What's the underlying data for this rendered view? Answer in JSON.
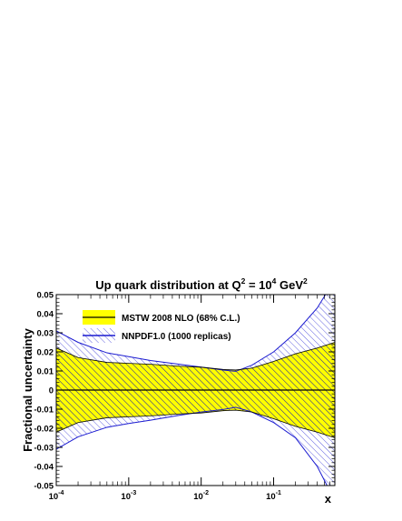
{
  "chart_data": {
    "type": "area",
    "title_main": "Up quark distribution at Q",
    "title_sup1": "2",
    "title_mid": " = 10",
    "title_sup2": "4",
    "title_unit": " GeV",
    "title_sup3": "2",
    "xlabel": "x",
    "ylabel": "Fractional uncertainty",
    "xscale": "log",
    "xlim": [
      0.0001,
      0.7
    ],
    "ylim": [
      -0.05,
      0.05
    ],
    "x_tick_labels": [
      {
        "base": "10",
        "exp": "-4",
        "value": 0.0001
      },
      {
        "base": "10",
        "exp": "-3",
        "value": 0.001
      },
      {
        "base": "10",
        "exp": "-2",
        "value": 0.01
      },
      {
        "base": "10",
        "exp": "-1",
        "value": 0.1
      }
    ],
    "y_ticks": [
      {
        "value": 0.05,
        "label": "0.05"
      },
      {
        "value": 0.04,
        "label": "0.04"
      },
      {
        "value": 0.03,
        "label": "0.03"
      },
      {
        "value": 0.02,
        "label": "0.02"
      },
      {
        "value": 0.01,
        "label": "0.01"
      },
      {
        "value": 0.0,
        "label": "0"
      },
      {
        "value": -0.01,
        "label": "-0.01"
      },
      {
        "value": -0.02,
        "label": "-0.02"
      },
      {
        "value": -0.03,
        "label": "-0.03"
      },
      {
        "value": -0.04,
        "label": "-0.04"
      },
      {
        "value": -0.05,
        "label": "-0.05"
      }
    ],
    "legend_placement": "top-left",
    "grid": false,
    "series": [
      {
        "name": "MSTW 2008 NLO (68% C.L.)",
        "style": "solid-band",
        "fill": "#ffff00",
        "hatch": "#000000",
        "edge": "#000000",
        "x": [
          0.0001,
          0.0002,
          0.0005,
          0.001,
          0.002,
          0.005,
          0.01,
          0.02,
          0.03,
          0.05,
          0.1,
          0.2,
          0.4,
          0.7
        ],
        "upper": [
          0.022,
          0.017,
          0.0145,
          0.014,
          0.0135,
          0.0125,
          0.012,
          0.0108,
          0.0105,
          0.0115,
          0.015,
          0.019,
          0.022,
          0.025
        ],
        "lower": [
          -0.022,
          -0.017,
          -0.0145,
          -0.014,
          -0.0135,
          -0.0125,
          -0.012,
          -0.0108,
          -0.0105,
          -0.0115,
          -0.015,
          -0.019,
          -0.022,
          -0.025
        ]
      },
      {
        "name": "NNPDF1.0 (1000 replicas)",
        "style": "hatched-band",
        "fill": "none",
        "hatch": "#3a3ad8",
        "edge": "#1a1ad0",
        "x": [
          0.0001,
          0.0002,
          0.0005,
          0.001,
          0.002,
          0.005,
          0.01,
          0.02,
          0.03,
          0.05,
          0.1,
          0.2,
          0.4,
          0.7
        ],
        "upper": [
          0.031,
          0.025,
          0.0195,
          0.0175,
          0.0155,
          0.0135,
          0.012,
          0.0105,
          0.0098,
          0.013,
          0.02,
          0.03,
          0.043,
          0.058
        ],
        "lower": [
          -0.031,
          -0.0245,
          -0.0195,
          -0.0175,
          -0.0158,
          -0.0132,
          -0.0115,
          -0.0102,
          -0.009,
          -0.0115,
          -0.017,
          -0.025,
          -0.04,
          -0.058
        ]
      }
    ]
  }
}
